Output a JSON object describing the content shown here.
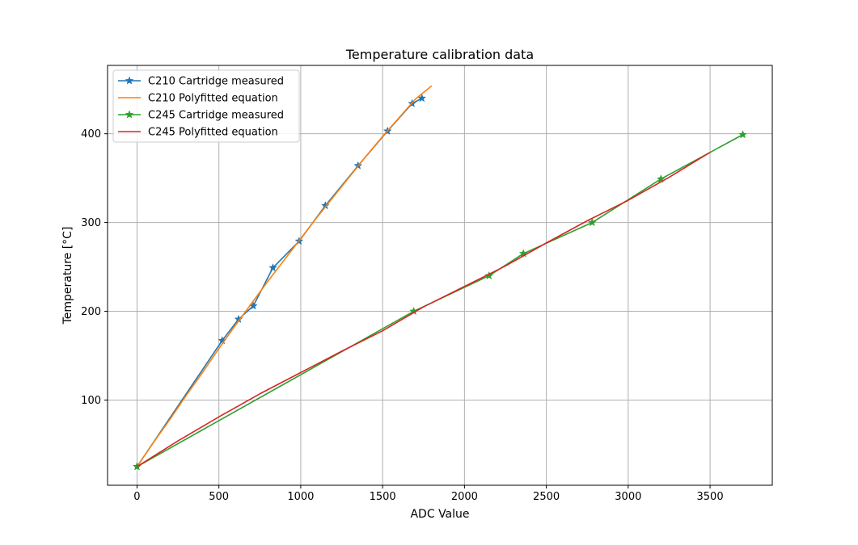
{
  "chart_data": {
    "type": "line",
    "title": "Temperature calibration data",
    "xlabel": "ADC Value",
    "ylabel": "Temperature [°C]",
    "xlim": [
      -180,
      3880
    ],
    "ylim": [
      4,
      477
    ],
    "xticks": [
      0,
      500,
      1000,
      1500,
      2000,
      2500,
      3000,
      3500
    ],
    "yticks": [
      100,
      200,
      300,
      400
    ],
    "grid": true,
    "legend_position": "upper-left",
    "series": [
      {
        "name": "C210 Cartridge measured",
        "color": "#1f77b4",
        "marker": "star",
        "x": [
          0,
          520,
          620,
          710,
          830,
          990,
          1150,
          1350,
          1530,
          1680,
          1740
        ],
        "y": [
          25,
          167,
          191,
          206,
          249,
          279,
          319,
          364,
          403,
          434,
          440
        ]
      },
      {
        "name": "C210 Polyfitted equation",
        "color": "#ff7f0e",
        "marker": "none",
        "x": [
          0,
          100,
          200,
          300,
          400,
          500,
          600,
          700,
          800,
          900,
          1000,
          1100,
          1200,
          1300,
          1400,
          1500,
          1600,
          1700,
          1800
        ],
        "y": [
          25,
          52,
          78,
          105,
          131,
          158,
          184,
          209,
          234,
          258,
          282,
          306,
          329,
          352,
          375,
          397,
          418,
          439,
          454
        ]
      },
      {
        "name": "C245 Cartridge measured",
        "color": "#2ca02c",
        "marker": "star",
        "x": [
          0,
          1690,
          2150,
          2360,
          2780,
          3200,
          3700
        ],
        "y": [
          25,
          200,
          240,
          265,
          300,
          349,
          399
        ]
      },
      {
        "name": "C245 Polyfitted equation",
        "color": "#d62728",
        "marker": "none",
        "x": [
          0,
          250,
          500,
          750,
          1000,
          1250,
          1500,
          1750,
          2000,
          2250,
          2500,
          2750,
          3000,
          3250,
          3500
        ],
        "y": [
          25,
          54,
          81,
          107,
          131,
          155,
          178,
          205,
          228,
          251,
          277,
          302,
          325,
          351,
          379
        ]
      }
    ]
  }
}
